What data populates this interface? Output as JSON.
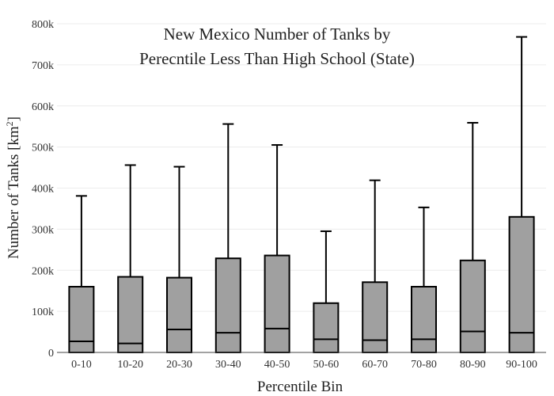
{
  "chart_data": {
    "type": "box",
    "title_lines": [
      "New Mexico Number of Tanks by",
      "Perecntile Less Than High School (State)"
    ],
    "xlabel": "Percentile Bin",
    "ylabel": "Number of Tanks  [km",
    "ylabel_sup": "2",
    "ylabel_close": "]",
    "ylim": [
      0,
      800000
    ],
    "y_ticks": [
      0,
      100000,
      200000,
      300000,
      400000,
      500000,
      600000,
      700000,
      800000
    ],
    "y_tick_labels": [
      "0",
      "100k",
      "200k",
      "300k",
      "400k",
      "500k",
      "600k",
      "700k",
      "800k"
    ],
    "grid": true,
    "box_color": "#a0a0a0",
    "categories": [
      "0-10",
      "10-20",
      "20-30",
      "30-40",
      "40-50",
      "50-60",
      "60-70",
      "70-80",
      "80-90",
      "90-100"
    ],
    "boxes": [
      {
        "lower": 0,
        "q1": 0,
        "median": 27000,
        "q3": 160000,
        "upper": 381000
      },
      {
        "lower": 0,
        "q1": 0,
        "median": 22000,
        "q3": 184000,
        "upper": 456000
      },
      {
        "lower": 0,
        "q1": 0,
        "median": 56000,
        "q3": 182000,
        "upper": 452000
      },
      {
        "lower": 0,
        "q1": 0,
        "median": 48000,
        "q3": 229000,
        "upper": 556000
      },
      {
        "lower": 0,
        "q1": 0,
        "median": 58000,
        "q3": 236000,
        "upper": 505000
      },
      {
        "lower": 0,
        "q1": 0,
        "median": 32000,
        "q3": 120000,
        "upper": 295000
      },
      {
        "lower": 0,
        "q1": 0,
        "median": 30000,
        "q3": 171000,
        "upper": 419000
      },
      {
        "lower": 0,
        "q1": 0,
        "median": 32000,
        "q3": 160000,
        "upper": 353000
      },
      {
        "lower": 0,
        "q1": 0,
        "median": 51000,
        "q3": 224000,
        "upper": 559000
      },
      {
        "lower": 0,
        "q1": 0,
        "median": 48000,
        "q3": 330000,
        "upper": 768000
      }
    ]
  }
}
